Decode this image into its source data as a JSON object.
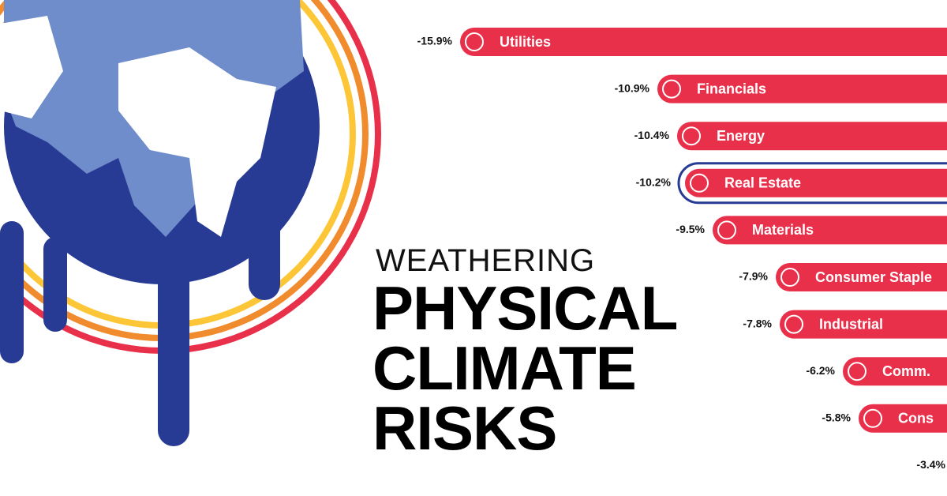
{
  "chart_data": {
    "type": "hbar",
    "kicker": "WEATHERING",
    "title": "PHYSICAL CLIMATE RISKS",
    "categories": [
      "Utilities",
      "Financials",
      "Energy",
      "Real Estate",
      "Materials",
      "Consumer Staple",
      "Industrial",
      "Comm.",
      "Cons",
      null
    ],
    "values": [
      -15.9,
      -10.9,
      -10.4,
      -10.2,
      -9.5,
      -7.9,
      -7.8,
      -6.2,
      -5.8,
      -3.4
    ],
    "value_labels": [
      "-15.9%",
      "-10.9%",
      "-10.4%",
      "-10.2%",
      "-9.5%",
      "-7.9%",
      "-7.8%",
      "-6.2%",
      "-5.8%",
      "-3.4%"
    ],
    "color": "#e8304a",
    "highlight": 3,
    "highlight_color": "#283b94"
  }
}
